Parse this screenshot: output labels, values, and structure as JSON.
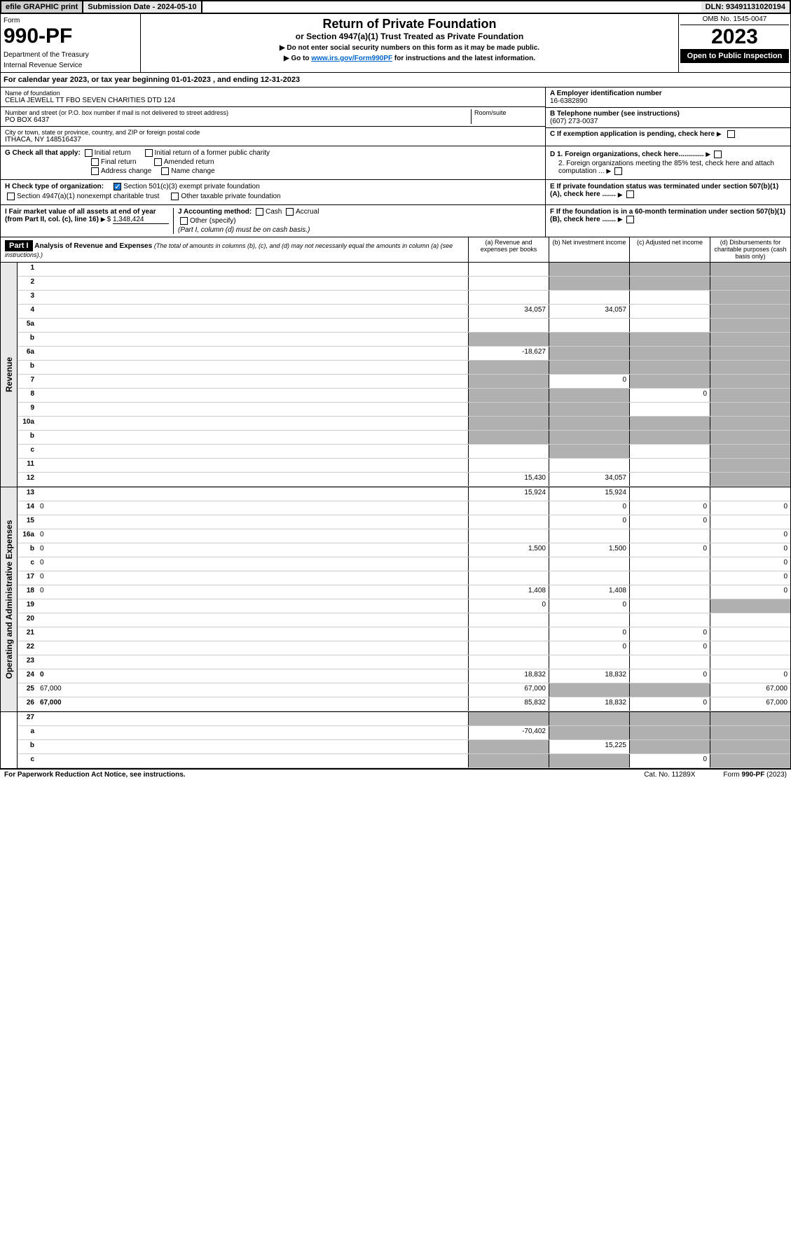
{
  "topBar": {
    "efile": "efile GRAPHIC print",
    "submission": "Submission Date - 2024-05-10",
    "dln": "DLN: 93491131020194"
  },
  "header": {
    "formLabel": "Form",
    "formNumber": "990-PF",
    "dept": "Department of the Treasury",
    "irs": "Internal Revenue Service",
    "title": "Return of Private Foundation",
    "subtitle": "or Section 4947(a)(1) Trust Treated as Private Foundation",
    "note1": "▶ Do not enter social security numbers on this form as it may be made public.",
    "note2Prefix": "▶ Go to ",
    "note2Link": "www.irs.gov/Form990PF",
    "note2Suffix": " for instructions and the latest information.",
    "omb": "OMB No. 1545-0047",
    "year": "2023",
    "open": "Open to Public Inspection"
  },
  "calYear": "For calendar year 2023, or tax year beginning 01-01-2023                              , and ending 12-31-2023",
  "info": {
    "nameLabel": "Name of foundation",
    "name": "CELIA JEWELL TT FBO SEVEN CHARITIES DTD 124",
    "addrLabel": "Number and street (or P.O. box number if mail is not delivered to street address)",
    "addr": "PO BOX 6437",
    "roomLabel": "Room/suite",
    "cityLabel": "City or town, state or province, country, and ZIP or foreign postal code",
    "city": "ITHACA, NY  148516437",
    "einLabel": "A Employer identification number",
    "ein": "16-6382890",
    "phoneLabel": "B Telephone number (see instructions)",
    "phone": "(607) 273-0037",
    "cLabel": "C If exemption application is pending, check here"
  },
  "checks": {
    "gLabel": "G Check all that apply:",
    "g1": "Initial return",
    "g2": "Initial return of a former public charity",
    "g3": "Final return",
    "g4": "Amended return",
    "g5": "Address change",
    "g6": "Name change",
    "hLabel": "H Check type of organization:",
    "h1": "Section 501(c)(3) exempt private foundation",
    "h2": "Section 4947(a)(1) nonexempt charitable trust",
    "h3": "Other taxable private foundation",
    "iLabel": "I Fair market value of all assets at end of year (from Part II, col. (c), line 16)",
    "iValue": "1,348,424",
    "jLabel": "J Accounting method:",
    "j1": "Cash",
    "j2": "Accrual",
    "j3": "Other (specify)",
    "jNote": "(Part I, column (d) must be on cash basis.)",
    "d1": "D 1. Foreign organizations, check here.............",
    "d2": "2. Foreign organizations meeting the 85% test, check here and attach computation ...",
    "e": "E  If private foundation status was terminated under section 507(b)(1)(A), check here .......",
    "f": "F  If the foundation is in a 60-month termination under section 507(b)(1)(B), check here ......."
  },
  "part1": {
    "label": "Part I",
    "title": "Analysis of Revenue and Expenses",
    "note": " (The total of amounts in columns (b), (c), and (d) may not necessarily equal the amounts in column (a) (see instructions).)",
    "colA": "(a)   Revenue and expenses per books",
    "colB": "(b)   Net investment income",
    "colC": "(c)   Adjusted net income",
    "colD": "(d)   Disbursements for charitable purposes (cash basis only)"
  },
  "sideRevenue": "Revenue",
  "sideExpenses": "Operating and Administrative Expenses",
  "rows": [
    {
      "n": "1",
      "d": "",
      "a": "",
      "b": "",
      "c": "",
      "sb": true,
      "sc": true,
      "sd": true
    },
    {
      "n": "2",
      "d": "",
      "a": "",
      "b": "",
      "c": "",
      "sb": true,
      "sc": true,
      "sd": true
    },
    {
      "n": "3",
      "d": "",
      "a": "",
      "b": "",
      "c": "",
      "sd": true
    },
    {
      "n": "4",
      "d": "",
      "a": "34,057",
      "b": "34,057",
      "c": "",
      "sd": true
    },
    {
      "n": "5a",
      "d": "",
      "a": "",
      "b": "",
      "c": "",
      "sd": true
    },
    {
      "n": "b",
      "d": "",
      "a": "",
      "b": "",
      "c": "",
      "sa": true,
      "sb": true,
      "sc": true,
      "sd": true
    },
    {
      "n": "6a",
      "d": "",
      "a": "-18,627",
      "b": "",
      "c": "",
      "sb": true,
      "sc": true,
      "sd": true
    },
    {
      "n": "b",
      "d": "",
      "a": "",
      "b": "",
      "c": "",
      "sa": true,
      "sb": true,
      "sc": true,
      "sd": true
    },
    {
      "n": "7",
      "d": "",
      "a": "",
      "b": "0",
      "c": "",
      "sa": true,
      "sc": true,
      "sd": true
    },
    {
      "n": "8",
      "d": "",
      "a": "",
      "b": "",
      "c": "0",
      "sa": true,
      "sb": true,
      "sd": true
    },
    {
      "n": "9",
      "d": "",
      "a": "",
      "b": "",
      "c": "",
      "sa": true,
      "sb": true,
      "sd": true
    },
    {
      "n": "10a",
      "d": "",
      "a": "",
      "b": "",
      "c": "",
      "sa": true,
      "sb": true,
      "sc": true,
      "sd": true
    },
    {
      "n": "b",
      "d": "",
      "a": "",
      "b": "",
      "c": "",
      "sa": true,
      "sb": true,
      "sc": true,
      "sd": true
    },
    {
      "n": "c",
      "d": "",
      "a": "",
      "b": "",
      "c": "",
      "sb": true,
      "sd": true
    },
    {
      "n": "11",
      "d": "",
      "a": "",
      "b": "",
      "c": "",
      "sd": true
    },
    {
      "n": "12",
      "d": "",
      "a": "15,430",
      "b": "34,057",
      "c": "",
      "sd": true,
      "bold": true
    }
  ],
  "expRows": [
    {
      "n": "13",
      "d": "",
      "a": "15,924",
      "b": "15,924",
      "c": ""
    },
    {
      "n": "14",
      "d": "0",
      "a": "",
      "b": "0",
      "c": "0"
    },
    {
      "n": "15",
      "d": "",
      "a": "",
      "b": "0",
      "c": "0"
    },
    {
      "n": "16a",
      "d": "0",
      "a": "",
      "b": "",
      "c": ""
    },
    {
      "n": "b",
      "d": "0",
      "a": "1,500",
      "b": "1,500",
      "c": "0"
    },
    {
      "n": "c",
      "d": "0",
      "a": "",
      "b": "",
      "c": ""
    },
    {
      "n": "17",
      "d": "0",
      "a": "",
      "b": "",
      "c": ""
    },
    {
      "n": "18",
      "d": "0",
      "a": "1,408",
      "b": "1,408",
      "c": ""
    },
    {
      "n": "19",
      "d": "",
      "a": "0",
      "b": "0",
      "c": "",
      "sd": true
    },
    {
      "n": "20",
      "d": "",
      "a": "",
      "b": "",
      "c": ""
    },
    {
      "n": "21",
      "d": "",
      "a": "",
      "b": "0",
      "c": "0"
    },
    {
      "n": "22",
      "d": "",
      "a": "",
      "b": "0",
      "c": "0"
    },
    {
      "n": "23",
      "d": "",
      "a": "",
      "b": "",
      "c": ""
    },
    {
      "n": "24",
      "d": "0",
      "a": "18,832",
      "b": "18,832",
      "c": "0",
      "bold": true
    },
    {
      "n": "25",
      "d": "67,000",
      "a": "67,000",
      "b": "",
      "c": "",
      "sb": true,
      "sc": true
    },
    {
      "n": "26",
      "d": "67,000",
      "a": "85,832",
      "b": "18,832",
      "c": "0",
      "bold": true
    }
  ],
  "bottomRows": [
    {
      "n": "27",
      "d": "",
      "a": "",
      "b": "",
      "c": "",
      "sa": true,
      "sb": true,
      "sc": true,
      "sd": true
    },
    {
      "n": "a",
      "d": "",
      "a": "-70,402",
      "b": "",
      "c": "",
      "sb": true,
      "sc": true,
      "sd": true,
      "bold": true
    },
    {
      "n": "b",
      "d": "",
      "a": "",
      "b": "15,225",
      "c": "",
      "sa": true,
      "sc": true,
      "sd": true,
      "bold": true
    },
    {
      "n": "c",
      "d": "",
      "a": "",
      "b": "",
      "c": "0",
      "sa": true,
      "sb": true,
      "sd": true,
      "bold": true
    }
  ],
  "footer": {
    "left": "For Paperwork Reduction Act Notice, see instructions.",
    "mid": "Cat. No. 11289X",
    "right": "Form 990-PF (2023)"
  }
}
